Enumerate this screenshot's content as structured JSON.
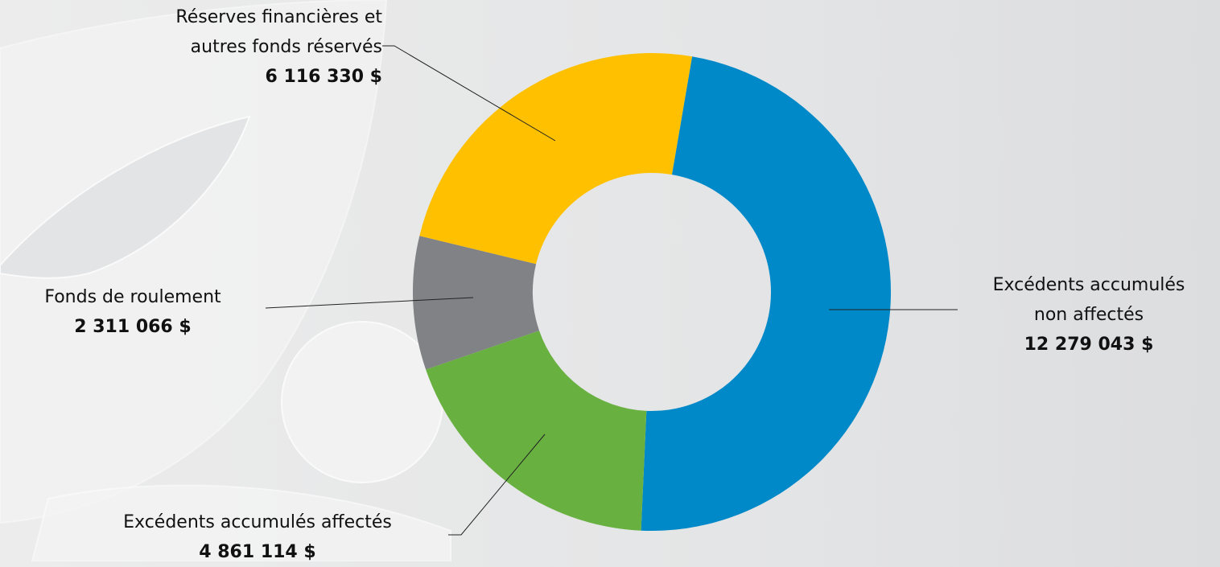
{
  "chart_data": {
    "type": "donut",
    "categories": [
      "Excédents accumulés\nnon affectés",
      "Excédents accumulés affectés",
      "Fonds de roulement",
      "Réserves financières et\nautres fonds réservés"
    ],
    "values": [
      12279043,
      4861114,
      2311066,
      6116330
    ],
    "value_labels": [
      "12 279 043 $",
      "4 861 114 $",
      "2 311 066 $",
      "6 116 330 $"
    ],
    "colors": [
      "#0089c8",
      "#68b040",
      "#808285",
      "#ffc000"
    ]
  }
}
